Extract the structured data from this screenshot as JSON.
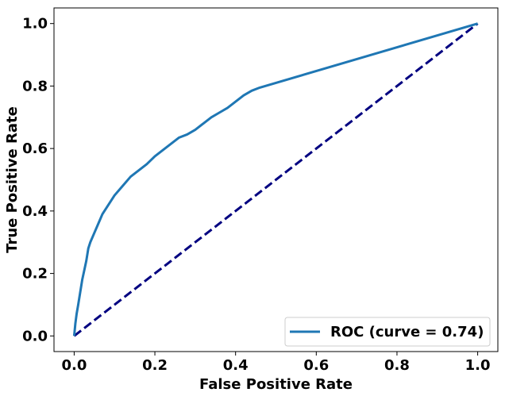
{
  "chart_data": {
    "type": "line",
    "title": "",
    "xlabel": "False Positive Rate",
    "ylabel": "True Positive Rate",
    "xlim": [
      -0.05,
      1.05
    ],
    "ylim": [
      -0.05,
      1.05
    ],
    "grid": false,
    "legend_position": "bottom-right",
    "x_ticks": [
      {
        "value": 0.0,
        "label": "0.0"
      },
      {
        "value": 0.2,
        "label": "0.2"
      },
      {
        "value": 0.4,
        "label": "0.4"
      },
      {
        "value": 0.6,
        "label": "0.6"
      },
      {
        "value": 0.8,
        "label": "0.8"
      },
      {
        "value": 1.0,
        "label": "1.0"
      }
    ],
    "y_ticks": [
      {
        "value": 0.0,
        "label": "0.0"
      },
      {
        "value": 0.2,
        "label": "0.2"
      },
      {
        "value": 0.4,
        "label": "0.4"
      },
      {
        "value": 0.6,
        "label": "0.6"
      },
      {
        "value": 0.8,
        "label": "0.8"
      },
      {
        "value": 1.0,
        "label": "1.0"
      }
    ],
    "series": [
      {
        "name": "ROC (curve = 0.74)",
        "color": "#1f77b4",
        "style": "solid",
        "x": [
          0.0,
          0.003,
          0.006,
          0.01,
          0.015,
          0.02,
          0.025,
          0.03,
          0.035,
          0.04,
          0.05,
          0.06,
          0.07,
          0.08,
          0.09,
          0.1,
          0.12,
          0.14,
          0.16,
          0.18,
          0.2,
          0.22,
          0.24,
          0.26,
          0.28,
          0.3,
          0.32,
          0.34,
          0.36,
          0.38,
          0.4,
          0.42,
          0.44,
          0.46,
          1.0
        ],
        "y": [
          0.0,
          0.04,
          0.07,
          0.1,
          0.14,
          0.18,
          0.21,
          0.24,
          0.28,
          0.3,
          0.33,
          0.36,
          0.39,
          0.41,
          0.43,
          0.45,
          0.48,
          0.51,
          0.53,
          0.55,
          0.575,
          0.595,
          0.615,
          0.635,
          0.645,
          0.66,
          0.68,
          0.7,
          0.715,
          0.73,
          0.75,
          0.77,
          0.785,
          0.795,
          1.0
        ]
      },
      {
        "name": "",
        "color": "#000080",
        "style": "dashed",
        "x": [
          0.0,
          1.0
        ],
        "y": [
          0.0,
          1.0
        ]
      }
    ]
  }
}
